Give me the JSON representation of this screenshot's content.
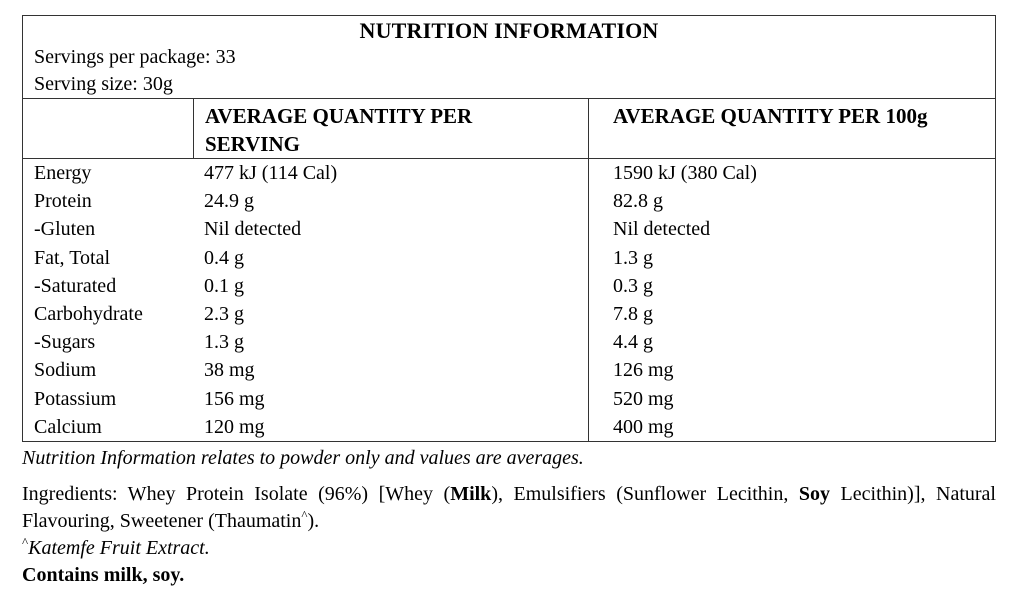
{
  "colors": {
    "background": "#ffffff",
    "text": "#000000",
    "border": "#333333"
  },
  "table": {
    "title": "NUTRITION INFORMATION",
    "servings_per_package": "Servings per package: 33",
    "serving_size": "Serving size: 30g",
    "columns": [
      "",
      "AVERAGE QUANTITY PER SERVING",
      "AVERAGE QUANTITY PER 100g"
    ],
    "rows": [
      {
        "nutrient": "Energy",
        "per_serving": "477 kJ (114 Cal)",
        "per_100g": "1590 kJ (380 Cal)"
      },
      {
        "nutrient": "Protein",
        "per_serving": "24.9 g",
        "per_100g": "82.8 g"
      },
      {
        "nutrient": "-Gluten",
        "per_serving": "Nil detected",
        "per_100g": "Nil detected"
      },
      {
        "nutrient": "Fat, Total",
        "per_serving": "0.4 g",
        "per_100g": "1.3 g"
      },
      {
        "nutrient": "-Saturated",
        "per_serving": "0.1 g",
        "per_100g": "0.3 g"
      },
      {
        "nutrient": "Carbohydrate",
        "per_serving": "2.3 g",
        "per_100g": "7.8 g"
      },
      {
        "nutrient": "-Sugars",
        "per_serving": "1.3 g",
        "per_100g": "4.4 g"
      },
      {
        "nutrient": "Sodium",
        "per_serving": "38 mg",
        "per_100g": "126 mg"
      },
      {
        "nutrient": "Potassium",
        "per_serving": "156 mg",
        "per_100g": "520 mg"
      },
      {
        "nutrient": "Calcium",
        "per_serving": "120 mg",
        "per_100g": "400 mg"
      }
    ]
  },
  "notes": {
    "averages_note": "Nutrition Information relates to powder only and values are averages.",
    "ingredients": {
      "segments": [
        {
          "text": "Ingredients: Whey Protein Isolate (96%) [Whey (",
          "bold": false
        },
        {
          "text": "Milk",
          "bold": true
        },
        {
          "text": "), Emulsifiers (Sunflower Lecithin, ",
          "bold": false
        },
        {
          "text": "Soy",
          "bold": true
        },
        {
          "text": " Lecithin)], Natural Flavouring, Sweetener (Thaumatin",
          "bold": false
        },
        {
          "text": "^",
          "bold": false,
          "sup": true
        },
        {
          "text": ").",
          "bold": false
        }
      ]
    },
    "katemfe": {
      "sup": "^",
      "text": "Katemfe Fruit Extract."
    },
    "contains": "Contains milk, soy."
  }
}
